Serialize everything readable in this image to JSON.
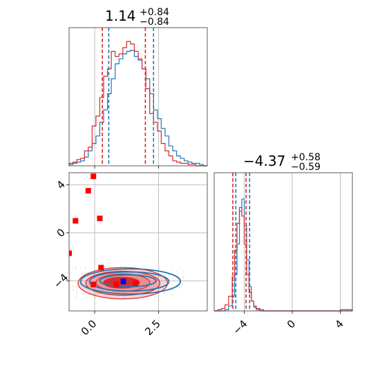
{
  "chart_data": {
    "type": "corner",
    "parameters": [
      {
        "name": "p0",
        "title_value": "1.14",
        "title_upper": "+0.84",
        "title_lower": "−0.84",
        "xlim": [
          -1.0,
          4.4
        ],
        "xticks": [
          0.0,
          2.5
        ],
        "xtick_labels": [
          "0.0",
          "2.5"
        ],
        "quantiles_red": [
          0.3,
          1.98
        ],
        "quantiles_blue": [
          0.55,
          2.3
        ],
        "hist_red_x": [
          -1.0,
          -0.85,
          -0.7,
          -0.55,
          -0.4,
          -0.25,
          -0.1,
          0.05,
          0.2,
          0.35,
          0.5,
          0.65,
          0.8,
          0.95,
          1.1,
          1.25,
          1.4,
          1.55,
          1.7,
          1.85,
          2.0,
          2.15,
          2.3,
          2.45,
          2.6,
          2.75,
          2.9,
          3.05,
          3.2,
          3.35,
          3.5,
          3.65,
          3.8,
          3.95,
          4.1,
          4.25
        ],
        "hist_red": [
          0.02,
          0.03,
          0.05,
          0.06,
          0.12,
          0.15,
          0.32,
          0.4,
          0.55,
          0.72,
          0.78,
          0.92,
          0.88,
          0.9,
          0.95,
          1.0,
          0.98,
          0.92,
          0.86,
          0.78,
          0.62,
          0.42,
          0.35,
          0.28,
          0.18,
          0.12,
          0.08,
          0.04,
          0.03,
          0.02,
          0.02,
          0.01,
          0.01,
          0.0,
          0.0,
          0.0
        ],
        "hist_blue_x": [
          -1.0,
          -0.85,
          -0.7,
          -0.55,
          -0.4,
          -0.25,
          -0.1,
          0.05,
          0.2,
          0.35,
          0.5,
          0.65,
          0.8,
          0.95,
          1.1,
          1.25,
          1.4,
          1.55,
          1.7,
          1.85,
          2.0,
          2.15,
          2.3,
          2.45,
          2.6,
          2.75,
          2.9,
          3.05,
          3.2,
          3.35,
          3.5,
          3.65,
          3.8,
          3.95,
          4.1,
          4.25
        ],
        "hist_blue": [
          0.01,
          0.02,
          0.03,
          0.04,
          0.07,
          0.12,
          0.18,
          0.24,
          0.35,
          0.45,
          0.58,
          0.7,
          0.82,
          0.86,
          0.9,
          0.92,
          0.93,
          0.88,
          0.85,
          0.78,
          0.7,
          0.58,
          0.45,
          0.38,
          0.3,
          0.24,
          0.16,
          0.12,
          0.08,
          0.06,
          0.04,
          0.03,
          0.02,
          0.02,
          0.01,
          0.0
        ]
      },
      {
        "name": "p1",
        "title_value": "−4.37",
        "title_upper": "+0.58",
        "title_lower": "−0.59",
        "xlim": [
          -6.5,
          5.0
        ],
        "xticks": [
          -4,
          0,
          4
        ],
        "xtick_labels": [
          "−4",
          "0",
          "4"
        ],
        "quantiles_red": [
          -4.95,
          -3.85
        ],
        "quantiles_blue": [
          -4.7,
          -3.55
        ],
        "hist_red_x": [
          -6.5,
          -6.2,
          -5.9,
          -5.6,
          -5.3,
          -5.0,
          -4.8,
          -4.6,
          -4.4,
          -4.2,
          -4.0,
          -3.8,
          -3.6,
          -3.4,
          -3.2,
          -3.0,
          -2.7,
          -2.4,
          -2.0,
          -1.0,
          0.0,
          1.0,
          2.0,
          3.0,
          4.0
        ],
        "hist_red": [
          0.0,
          0.01,
          0.02,
          0.05,
          0.12,
          0.28,
          0.5,
          0.72,
          0.85,
          0.78,
          0.55,
          0.3,
          0.15,
          0.08,
          0.04,
          0.02,
          0.01,
          0.0,
          0.0,
          0.0,
          0.0,
          0.0,
          0.0,
          0.0,
          0.01
        ],
        "hist_blue_x": [
          -6.5,
          -6.2,
          -5.9,
          -5.6,
          -5.3,
          -5.0,
          -4.8,
          -4.6,
          -4.4,
          -4.2,
          -4.0,
          -3.8,
          -3.6,
          -3.4,
          -3.2,
          -3.0,
          -2.7,
          -2.4,
          -2.0,
          -1.0,
          0.0,
          1.0,
          2.0,
          3.0,
          4.0
        ],
        "hist_blue": [
          0.0,
          0.0,
          0.0,
          0.01,
          0.04,
          0.12,
          0.3,
          0.55,
          0.82,
          0.92,
          0.7,
          0.42,
          0.2,
          0.08,
          0.03,
          0.01,
          0.0,
          0.0,
          0.0,
          0.0,
          0.0,
          0.0,
          0.0,
          0.0,
          0.0
        ]
      }
    ],
    "joint": {
      "xlim": [
        -1.0,
        4.4
      ],
      "ylim": [
        -6.5,
        5.0
      ],
      "xticks": [
        0.0,
        2.5
      ],
      "yticks": [
        -4,
        0,
        4
      ],
      "ytick_labels": [
        "−4",
        "0",
        "4"
      ],
      "red_contours": [
        {
          "cx": 1.1,
          "cy": -4.2,
          "rx": 1.75,
          "ry": 1.3
        },
        {
          "cx": 1.1,
          "cy": -4.2,
          "rx": 1.45,
          "ry": 1.0
        },
        {
          "cx": 1.1,
          "cy": -4.15,
          "rx": 1.05,
          "ry": 0.72
        },
        {
          "cx": 1.05,
          "cy": -4.15,
          "rx": 0.7,
          "ry": 0.45
        }
      ],
      "blue_contours": [
        {
          "cx": 1.4,
          "cy": -4.05,
          "rx": 1.95,
          "ry": 1.05
        },
        {
          "cx": 1.35,
          "cy": -4.05,
          "rx": 1.55,
          "ry": 0.8
        },
        {
          "cx": 1.3,
          "cy": -4.0,
          "rx": 1.1,
          "ry": 0.5
        }
      ],
      "red_markers": [
        {
          "x": -0.05,
          "y": 4.7
        },
        {
          "x": -0.25,
          "y": 3.5
        },
        {
          "x": -0.75,
          "y": 1.0
        },
        {
          "x": 0.2,
          "y": 1.2
        },
        {
          "x": 0.25,
          "y": -2.9
        },
        {
          "x": -0.05,
          "y": -4.3
        },
        {
          "x": 0.85,
          "y": -4.3
        },
        {
          "x": 1.6,
          "y": -4.2
        },
        {
          "x": -1.0,
          "y": -1.7
        }
      ],
      "blue_marker": {
        "x": 1.12,
        "y": -4.05
      }
    },
    "colors": {
      "red": "#d62728",
      "blue": "#1f77b4",
      "marker_red": "#ff0000",
      "marker_blue": "#0000ff",
      "red_fill": "#e8878a"
    }
  }
}
